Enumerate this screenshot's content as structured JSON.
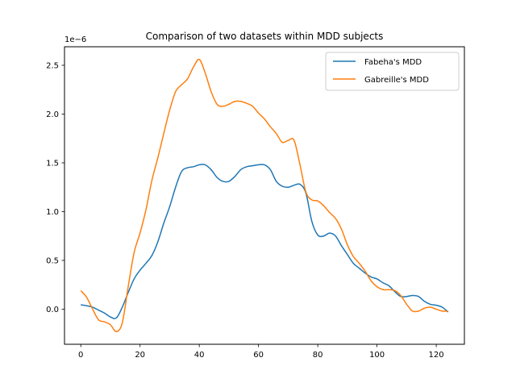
{
  "chart_data": {
    "type": "line",
    "title": "Comparison of two datasets within MDD subjects",
    "xlabel": "",
    "ylabel": "",
    "y_offset_label": "1e−6",
    "xlim": [
      -5.5,
      129.5
    ],
    "ylim": [
      -3.6e-07,
      2.69e-06
    ],
    "xticks": [
      0,
      20,
      40,
      60,
      80,
      100,
      120
    ],
    "yticks": [
      0,
      5e-07,
      1e-06,
      1.5e-06,
      2e-06,
      2.5e-06
    ],
    "ytick_labels": [
      "0.0",
      "0.5",
      "1.0",
      "1.5",
      "2.0",
      "2.5"
    ],
    "grid": false,
    "legend_position": "top-right",
    "series": [
      {
        "name": "Fabeha's MDD",
        "color": "#1f77b4",
        "x": [
          0,
          2,
          4,
          6,
          8,
          10,
          12,
          14,
          16,
          18,
          20,
          22,
          24,
          26,
          28,
          30,
          32,
          34,
          36,
          38,
          40,
          42,
          44,
          46,
          48,
          50,
          52,
          54,
          56,
          58,
          60,
          62,
          64,
          66,
          68,
          70,
          72,
          74,
          76,
          78,
          80,
          82,
          84,
          86,
          88,
          90,
          92,
          94,
          96,
          98,
          100,
          102,
          104,
          106,
          108,
          110,
          112,
          114,
          116,
          118,
          120,
          122,
          124
        ],
        "y": [
          4.5e-08,
          3.5e-08,
          2e-08,
          -1e-08,
          -4e-08,
          -8e-08,
          -9e-08,
          2e-08,
          1.7e-07,
          3.1e-07,
          4e-07,
          4.7e-07,
          5.5e-07,
          6.9e-07,
          8.8e-07,
          1.05e-06,
          1.25e-06,
          1.41e-06,
          1.45e-06,
          1.46e-06,
          1.48e-06,
          1.48e-06,
          1.43e-06,
          1.35e-06,
          1.31e-06,
          1.31e-06,
          1.36e-06,
          1.43e-06,
          1.46e-06,
          1.47e-06,
          1.48e-06,
          1.48e-06,
          1.43e-06,
          1.31e-06,
          1.26e-06,
          1.25e-06,
          1.27e-06,
          1.28e-06,
          1.19e-06,
          9e-07,
          7.6e-07,
          7.5e-07,
          7.8e-07,
          7.5e-07,
          6.5e-07,
          5.6e-07,
          4.7e-07,
          4.2e-07,
          3.7e-07,
          3.3e-07,
          3.1e-07,
          2.7e-07,
          2.4e-07,
          1.8e-07,
          1.3e-07,
          1.3e-07,
          1.4e-07,
          1.3e-07,
          8e-08,
          5e-08,
          4e-08,
          2e-08,
          -3e-08
        ]
      },
      {
        "name": "Gabreille's MDD",
        "color": "#ff7f0e",
        "x": [
          0,
          2,
          4,
          6,
          8,
          10,
          12,
          14,
          16,
          18,
          20,
          22,
          24,
          26,
          28,
          30,
          32,
          34,
          36,
          38,
          40,
          42,
          44,
          46,
          48,
          50,
          52,
          54,
          56,
          58,
          60,
          62,
          64,
          66,
          68,
          70,
          72,
          74,
          76,
          78,
          80,
          82,
          84,
          86,
          88,
          90,
          92,
          94,
          96,
          98,
          100,
          102,
          104,
          106,
          108,
          110,
          112,
          114,
          116,
          118,
          120,
          122,
          124
        ],
        "y": [
          1.9e-07,
          1.2e-07,
          0,
          -1.1e-07,
          -1.3e-07,
          -1.6e-07,
          -2.3e-07,
          -1.4e-07,
          2.3e-07,
          5.8e-07,
          7.8e-07,
          1.02e-06,
          1.32e-06,
          1.55e-06,
          1.8e-06,
          2.04e-06,
          2.23e-06,
          2.3e-06,
          2.36e-06,
          2.48e-06,
          2.56e-06,
          2.42e-06,
          2.23e-06,
          2.1e-06,
          2.08e-06,
          2.1e-06,
          2.13e-06,
          2.13e-06,
          2.11e-06,
          2.08e-06,
          2.01e-06,
          1.95e-06,
          1.87e-06,
          1.8e-06,
          1.71e-06,
          1.73e-06,
          1.73e-06,
          1.48e-06,
          1.2e-06,
          1.12e-06,
          1.11e-06,
          1.06e-06,
          9.9e-07,
          9.3e-07,
          8.2e-07,
          6.6e-07,
          5.4e-07,
          4.7e-07,
          3.9e-07,
          2.9e-07,
          2.3e-07,
          2e-07,
          2e-07,
          1.9e-07,
          1.4e-07,
          5e-08,
          -2e-08,
          -2e-08,
          1e-08,
          2e-08,
          0,
          -2e-08,
          -2e-08
        ]
      }
    ]
  }
}
